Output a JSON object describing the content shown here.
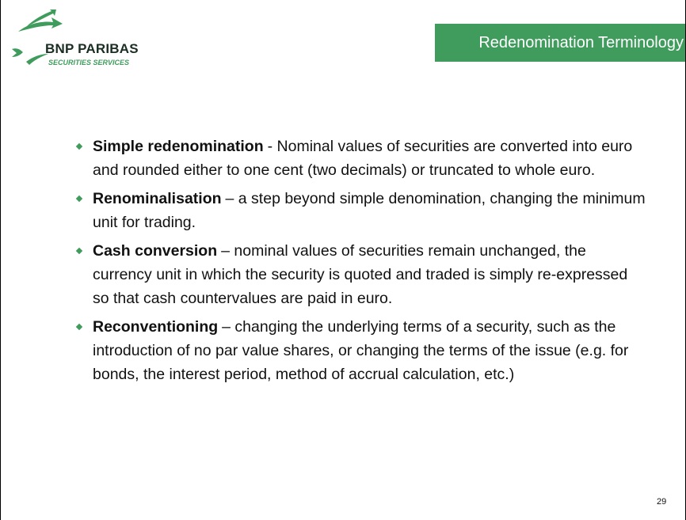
{
  "header": {
    "title": "Redenomination Terminology",
    "logo": {
      "name": "BNP PARIBAS",
      "tagline": "SECURITIES SERVICES"
    }
  },
  "bullets": [
    {
      "term": "Simple redenomination",
      "text": "- Nominal values of securities are converted into euro and rounded either to one cent (two decimals) or truncated to whole euro."
    },
    {
      "term": "Renominalisation",
      "text": "– a step beyond simple denomination, changing the minimum unit for trading."
    },
    {
      "term": "Cash conversion",
      "text": "– nominal values of securities remain unchanged, the currency unit in which the security is quoted and traded is simply re-expressed so that cash countervalues are paid in euro."
    },
    {
      "term": "Reconventioning",
      "text": "– changing the underlying terms of a security, such as the introduction of no par value shares, or changing the terms of the issue (e.g. for bonds, the interest period, method of accrual calculation, etc.)"
    }
  ],
  "page_number": "29"
}
